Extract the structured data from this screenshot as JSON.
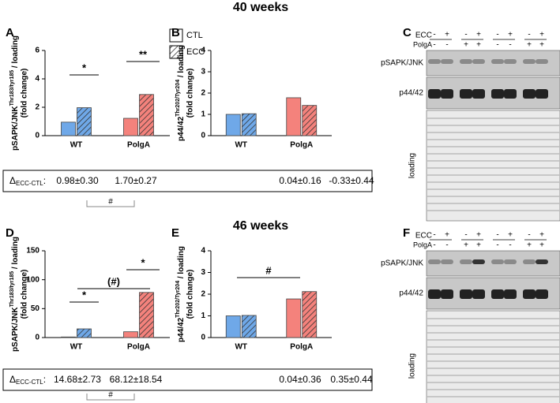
{
  "chart_data": [
    {
      "type": "bar",
      "panel": "A",
      "ylabel": "pSAPK/JNK",
      "ylabel_sup": "Thr183/tyr185",
      "ylabel_suffix": " / loading",
      "ylabel_line2": "(fold change)",
      "categories": [
        "WT",
        "PolgA"
      ],
      "category_colors": [
        "#6fa8e8",
        "#f4827c"
      ],
      "series": [
        {
          "name": "CTL",
          "hatched": false,
          "values": [
            0.95,
            1.22
          ]
        },
        {
          "name": "ECC",
          "hatched": true,
          "values": [
            1.97,
            2.9
          ]
        }
      ],
      "ylim": [
        0,
        6
      ],
      "yticks": [
        0,
        2,
        4,
        6
      ],
      "legend": true,
      "annotations": [
        "*",
        "**"
      ]
    },
    {
      "type": "bar",
      "panel": "B",
      "ylabel": "p44/42",
      "ylabel_sup": "Thr202/Tyr204",
      "ylabel_suffix": " / loading",
      "ylabel_line2": "(fold change)",
      "categories": [
        "WT",
        "PolgA"
      ],
      "category_colors": [
        "#6fa8e8",
        "#f4827c"
      ],
      "series": [
        {
          "name": "CTL",
          "hatched": false,
          "values": [
            1.0,
            1.78
          ]
        },
        {
          "name": "ECC",
          "hatched": true,
          "values": [
            1.03,
            1.42
          ]
        }
      ],
      "ylim": [
        0,
        4
      ],
      "yticks": [
        0,
        1,
        2,
        3,
        4
      ],
      "legend": false,
      "annotations": []
    },
    {
      "type": "bar",
      "panel": "D",
      "ylabel": "pSAPK/JNK",
      "ylabel_sup": "Thr183/tyr185",
      "ylabel_suffix": " / loading",
      "ylabel_line2": "(fold change)",
      "categories": [
        "WT",
        "PolgA"
      ],
      "category_colors": [
        "#6fa8e8",
        "#f4827c"
      ],
      "series": [
        {
          "name": "CTL",
          "hatched": false,
          "values": [
            1,
            10
          ]
        },
        {
          "name": "ECC",
          "hatched": true,
          "values": [
            15,
            78
          ]
        }
      ],
      "ylim": [
        0,
        150
      ],
      "yticks": [
        0,
        50,
        100,
        150
      ],
      "legend": false,
      "annotations": [
        "*",
        "(#)",
        "*"
      ]
    },
    {
      "type": "bar",
      "panel": "E",
      "ylabel": "p44/42",
      "ylabel_sup": "Thr202/Tyr204",
      "ylabel_suffix": " / loading",
      "ylabel_line2": "(fold change)",
      "categories": [
        "WT",
        "PolgA"
      ],
      "category_colors": [
        "#6fa8e8",
        "#f4827c"
      ],
      "series": [
        {
          "name": "CTL",
          "hatched": false,
          "values": [
            1.0,
            1.78
          ]
        },
        {
          "name": "ECC",
          "hatched": true,
          "values": [
            1.02,
            2.12
          ]
        }
      ],
      "ylim": [
        0,
        4
      ],
      "yticks": [
        0,
        1,
        2,
        3,
        4
      ],
      "legend": false,
      "annotations": [
        "#"
      ]
    }
  ],
  "sections": [
    {
      "title": "40 weeks",
      "delta_symbol": "Δ",
      "delta_sub": "ECC-CTL",
      "delta_colon": ":",
      "deltas": [
        "0.98±0.30",
        "1.70±0.27",
        "0.04±0.16",
        "-0.33±0.44"
      ],
      "delta_sig": "#",
      "blot": {
        "panel": "C",
        "row1": "ECC",
        "row1_signs": [
          "-",
          "+",
          "-",
          "+",
          "-",
          "+",
          "-",
          "+"
        ],
        "row2": "PolgA",
        "row2_signs": [
          "-",
          "-",
          "+",
          "+",
          "-",
          "-",
          "+",
          "+"
        ],
        "plus_color": "#d62728",
        "lanes": [
          "pSAPK/JNK",
          "p44/42",
          "loading"
        ]
      }
    },
    {
      "title": "46 weeks",
      "delta_symbol": "Δ",
      "delta_sub": "ECC-CTL",
      "delta_colon": ":",
      "deltas": [
        "14.68±2.73",
        "68.12±18.54",
        "0.04±0.36",
        "0.35±0.44"
      ],
      "delta_sig": "#",
      "blot": {
        "panel": "F",
        "row1": "ECC",
        "row1_signs": [
          "-",
          "+",
          "-",
          "+",
          "-",
          "+",
          "-",
          "+"
        ],
        "row2": "PolgA",
        "row2_signs": [
          "-",
          "-",
          "+",
          "+",
          "-",
          "-",
          "+",
          "+"
        ],
        "plus_color": "#d62728",
        "lanes": [
          "pSAPK/JNK",
          "p44/42",
          "loading"
        ]
      }
    }
  ]
}
